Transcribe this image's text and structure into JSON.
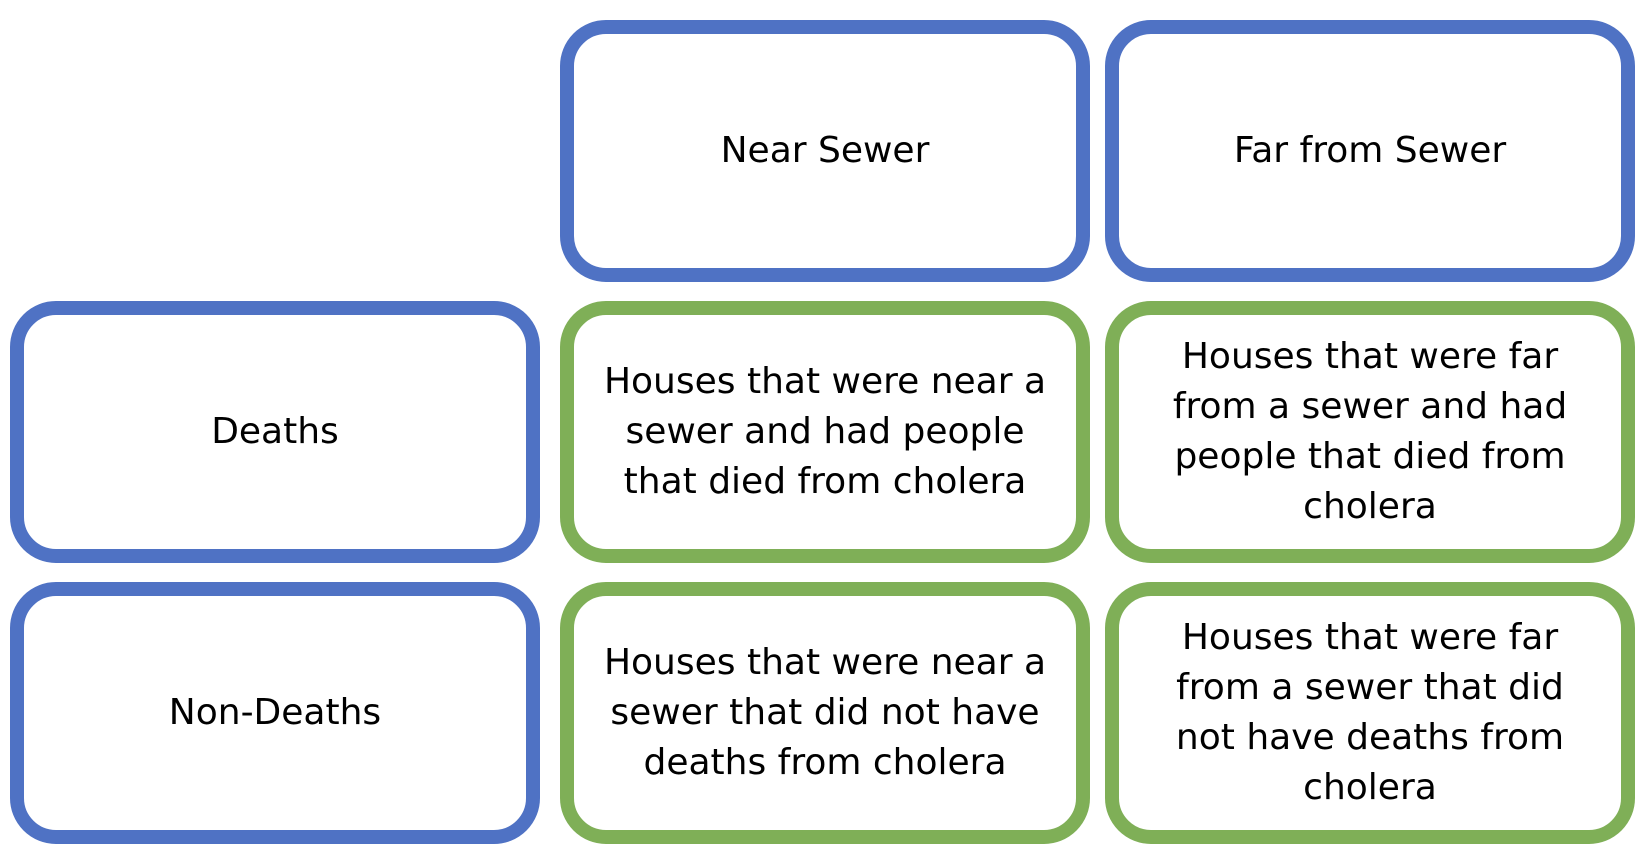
{
  "columns": {
    "near": "Near Sewer",
    "far": "Far from Sewer"
  },
  "rows": {
    "deaths": "Deaths",
    "non_deaths": "Non-Deaths"
  },
  "cells": {
    "deaths_near": "Houses that were near a sewer and had people that died from cholera",
    "deaths_far": "Houses that were far from a sewer and had people that died from cholera",
    "nondeaths_near": "Houses that were near a sewer that did not have deaths from cholera",
    "nondeaths_far": "Houses that were far from a sewer that did not have deaths from cholera"
  },
  "colors": {
    "header_border": "#4f72c4",
    "cell_border": "#7faf57"
  }
}
